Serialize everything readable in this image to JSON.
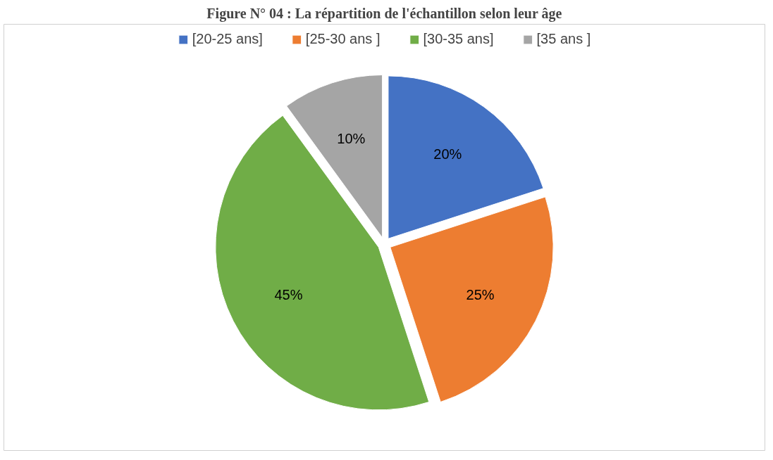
{
  "chart_data": {
    "type": "pie",
    "title": "Figure N° 04 : La répartition de l'échantillon selon leur âge",
    "categories": [
      "[20-25 ans]",
      "[25-30 ans ]",
      "[30-35 ans]",
      "[35 ans ]"
    ],
    "values": [
      20,
      25,
      45,
      10
    ],
    "colors": [
      "#4472c4",
      "#ed7d31",
      "#70ad47",
      "#a5a5a5"
    ],
    "value_labels": [
      "20%",
      "25%",
      "45%",
      "10%"
    ],
    "legend": "top"
  }
}
